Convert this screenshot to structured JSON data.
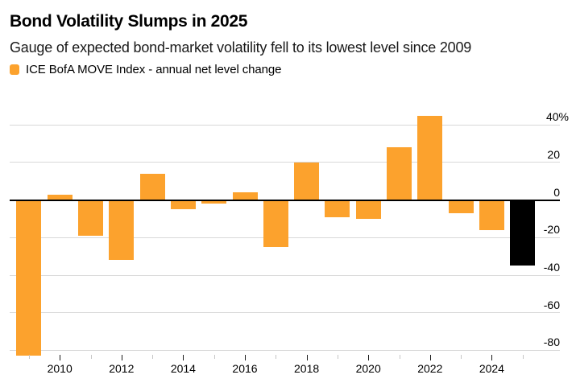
{
  "header": {
    "title": "Bond Volatility Slumps in 2025",
    "subtitle": "Gauge of expected bond-market volatility fell to its lowest level since 2009"
  },
  "legend": {
    "label": "ICE BofA MOVE Index - annual net level change"
  },
  "colors": {
    "bar_orange": "#FCA22D",
    "bar_black": "#000000",
    "gridline": "#D8D8D8",
    "zero_line": "#000000",
    "major_tick": "#1A1A1A",
    "minor_tick": "#C6C6C6",
    "title_text": "#000000",
    "subtitle_text": "#1A1A1A"
  },
  "chart_data": {
    "type": "bar",
    "title": "Bond Volatility Slumps in 2025",
    "subtitle": "Gauge of expected bond-market volatility fell to its lowest level since 2009",
    "series_name": "ICE BofA MOVE Index - annual net level change",
    "unit": "%",
    "categories": [
      2009,
      2010,
      2011,
      2012,
      2013,
      2014,
      2015,
      2016,
      2017,
      2018,
      2019,
      2020,
      2021,
      2022,
      2023,
      2024,
      2025
    ],
    "values": [
      -83,
      3,
      -19,
      -32,
      14,
      -5,
      -2,
      4,
      -25,
      20,
      -9,
      -10,
      28,
      45,
      -7,
      -16,
      -35
    ],
    "highlight": {
      "category": 2025,
      "color": "#000000"
    },
    "bar_color": "#FCA22D",
    "grid": true,
    "legend_position": "top-left",
    "y_axis": {
      "side": "right",
      "range": [
        -90,
        46
      ],
      "ticks": [
        {
          "value": 40,
          "label": "40%"
        },
        {
          "value": 20,
          "label": "20"
        },
        {
          "value": 0,
          "label": "0"
        },
        {
          "value": -20,
          "label": "-20"
        },
        {
          "value": -40,
          "label": "-40"
        },
        {
          "value": -60,
          "label": "-60"
        },
        {
          "value": -80,
          "label": "-80"
        }
      ]
    },
    "x_axis": {
      "tick_years": [
        2009,
        2010,
        2011,
        2012,
        2013,
        2014,
        2015,
        2016,
        2017,
        2018,
        2019,
        2020,
        2021,
        2022,
        2023,
        2024,
        2025
      ],
      "labeled_years": [
        2010,
        2012,
        2014,
        2016,
        2018,
        2020,
        2022,
        2024
      ]
    }
  }
}
